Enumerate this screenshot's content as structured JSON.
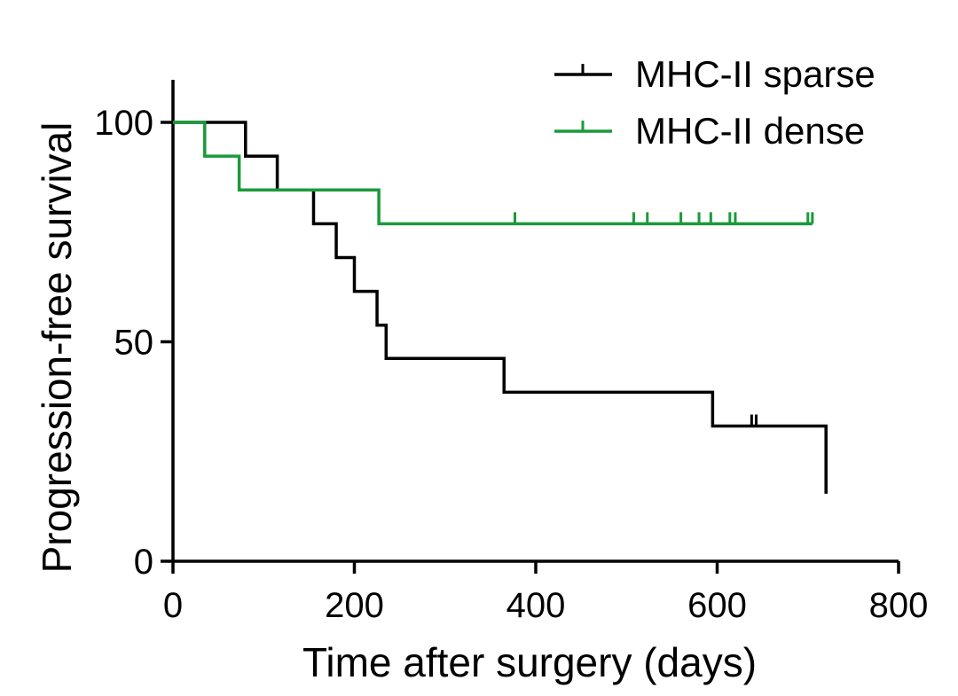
{
  "chart_data": {
    "type": "line",
    "subtype": "kaplan-meier",
    "title": "",
    "xlabel": "Time after surgery (days)",
    "ylabel": "Progression-free survival",
    "xlim": [
      0,
      800
    ],
    "ylim": [
      0,
      110
    ],
    "xticks": [
      0,
      200,
      400,
      600,
      800
    ],
    "yticks": [
      0,
      50,
      100
    ],
    "grid": false,
    "legend_position": "top-right",
    "series": [
      {
        "name": "MHC-II sparse",
        "color": "#000000",
        "steps": [
          {
            "x": 0,
            "y": 100
          },
          {
            "x": 80,
            "y": 92.3
          },
          {
            "x": 115,
            "y": 84.6
          },
          {
            "x": 155,
            "y": 76.9
          },
          {
            "x": 180,
            "y": 69.2
          },
          {
            "x": 200,
            "y": 61.5
          },
          {
            "x": 225,
            "y": 53.8
          },
          {
            "x": 235,
            "y": 46.2
          },
          {
            "x": 365,
            "y": 38.5
          },
          {
            "x": 595,
            "y": 30.8
          },
          {
            "x": 720,
            "y": 15.4
          }
        ],
        "end_x": 720,
        "censored": [
          {
            "x": 638,
            "y": 30.8
          },
          {
            "x": 643,
            "y": 30.8
          },
          {
            "x": 720,
            "y": 15.4
          }
        ]
      },
      {
        "name": "MHC-II dense",
        "color": "#1a9a3a",
        "steps": [
          {
            "x": 0,
            "y": 100
          },
          {
            "x": 35,
            "y": 92.3
          },
          {
            "x": 73,
            "y": 84.6
          },
          {
            "x": 227,
            "y": 76.9
          }
        ],
        "end_x": 705,
        "censored": [
          {
            "x": 377,
            "y": 76.9
          },
          {
            "x": 508,
            "y": 76.9
          },
          {
            "x": 523,
            "y": 76.9
          },
          {
            "x": 560,
            "y": 76.9
          },
          {
            "x": 580,
            "y": 76.9
          },
          {
            "x": 593,
            "y": 76.9
          },
          {
            "x": 614,
            "y": 76.9
          },
          {
            "x": 620,
            "y": 76.9
          },
          {
            "x": 700,
            "y": 76.9
          },
          {
            "x": 705,
            "y": 76.9
          }
        ]
      }
    ]
  }
}
